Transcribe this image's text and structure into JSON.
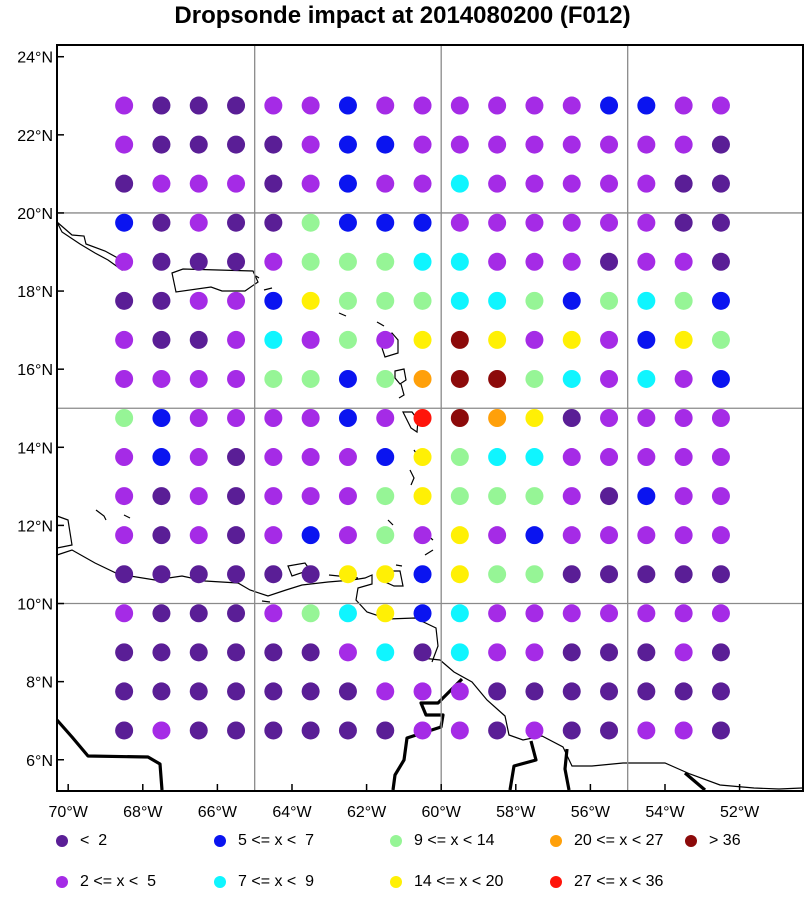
{
  "title": "Dropsonde impact at 2014080200 (F012)",
  "map": {
    "lon_range": [
      -70.3,
      -50.3
    ],
    "lat_range": [
      5.2,
      24.3
    ],
    "lon_ticks": [
      {
        "value": -70,
        "label": "70°W"
      },
      {
        "value": -68,
        "label": "68°W"
      },
      {
        "value": -66,
        "label": "66°W"
      },
      {
        "value": -64,
        "label": "64°W"
      },
      {
        "value": -62,
        "label": "62°W"
      },
      {
        "value": -60,
        "label": "60°W"
      },
      {
        "value": -58,
        "label": "58°W"
      },
      {
        "value": -56,
        "label": "56°W"
      },
      {
        "value": -54,
        "label": "54°W"
      },
      {
        "value": -52,
        "label": "52°W"
      }
    ],
    "lat_ticks": [
      {
        "value": 6,
        "label": "6°N"
      },
      {
        "value": 8,
        "label": "8°N"
      },
      {
        "value": 10,
        "label": "10°N"
      },
      {
        "value": 12,
        "label": "12°N"
      },
      {
        "value": 14,
        "label": "14°N"
      },
      {
        "value": 16,
        "label": "16°N"
      },
      {
        "value": 18,
        "label": "18°N"
      },
      {
        "value": 20,
        "label": "20°N"
      },
      {
        "value": 22,
        "label": "22°N"
      },
      {
        "value": 24,
        "label": "24°N"
      }
    ],
    "grid_lons": [
      -65,
      -60,
      -55
    ],
    "grid_lats": [
      10,
      15,
      20
    ],
    "grid": true
  },
  "chart_data": {
    "type": "scatter",
    "title": "Dropsonde impact at 2014080200 (F012)",
    "lons": [
      -68.5,
      -67.5,
      -66.5,
      -65.5,
      -64.5,
      -63.5,
      -62.5,
      -61.5,
      -60.5,
      -59.5,
      -58.5,
      -57.5,
      -56.5,
      -55.5,
      -54.5,
      -53.5,
      -52.5
    ],
    "lats": [
      22.75,
      21.75,
      20.75,
      19.75,
      18.75,
      17.75,
      16.75,
      15.75,
      14.75,
      13.75,
      12.75,
      11.75,
      10.75,
      9.75,
      8.75,
      7.75,
      6.75
    ],
    "category_grid": [
      "BAAABBCBBBBBBCCBB",
      "BAAAABCCBBBBBBBBA",
      "ABBBABCBBDBBBBBAA",
      "CABAAECCCBBBBBBAA",
      "BAAABEEEDDBBBABBA",
      "AABBCGEEEDDECEDEC",
      "BAABDBEBGIGBGBCGE",
      "BBBBEECEHIIEDBDBC",
      "ECBBBBCBJIHGABBBB",
      "BCBABBBCGEDDBBBBB",
      "BABABBBEGEEEBACBB",
      "BABABCBEBGBCBBBBB",
      "AAAAAAGGCGEEAAAAA",
      "BAAABEDGCDBBBBBBB",
      "AAAAAABDADBBAAABA",
      "AAAAAAABBBAAAAAAA",
      "ABAAAAAABBABAABBA"
    ],
    "legend": [
      {
        "key": "A",
        "label": "<  2",
        "color": "#5a1e96"
      },
      {
        "key": "B",
        "label": "2 <= x <  5",
        "color": "#a52be6"
      },
      {
        "key": "C",
        "label": "5 <= x <  7",
        "color": "#0a14f0"
      },
      {
        "key": "D",
        "label": "7 <= x <  9",
        "color": "#0ff5ff"
      },
      {
        "key": "E",
        "label": "9 <= x < 14",
        "color": "#96f596"
      },
      {
        "key": "G",
        "label": "14 <= x < 20",
        "color": "#fff005"
      },
      {
        "key": "H",
        "label": "20 <= x < 27",
        "color": "#ffa00a"
      },
      {
        "key": "J",
        "label": "27 <= x < 36",
        "color": "#ff140a"
      },
      {
        "key": "I",
        "label": "> 36",
        "color": "#8c0a0a"
      }
    ]
  }
}
